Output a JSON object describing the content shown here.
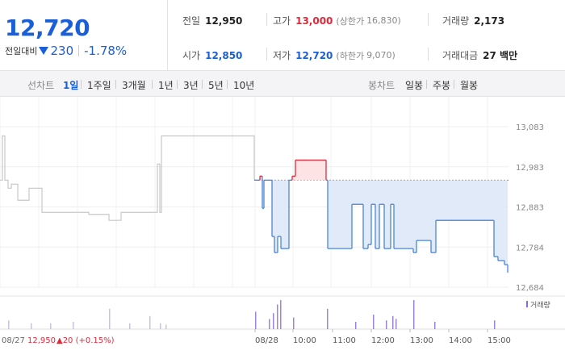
{
  "summary": {
    "price": "12,720",
    "change_label": "전일대비",
    "change_amount": "230",
    "change_pct": "-1.78%",
    "prev_close_label": "전일",
    "prev_close": "12,950",
    "high_label": "고가",
    "high": "13,000",
    "upper_limit_label": "(상한가",
    "upper_limit": "16,830)",
    "volume_label": "거래량",
    "volume": "2,173",
    "open_label": "시가",
    "open": "12,850",
    "low_label": "저가",
    "low": "12,720",
    "lower_limit_label": "(하한가",
    "lower_limit": "9,070)",
    "amount_label": "거래대금",
    "amount": "27 백만"
  },
  "tabs": {
    "line_chart_label": "선차트",
    "periods": [
      "1일",
      "1주일",
      "3개월",
      "1년",
      "3년",
      "5년",
      "10년"
    ],
    "active_period": "1일",
    "candle_label": "봉차트",
    "candles": [
      "일봉",
      "주봉",
      "월봉"
    ]
  },
  "chart_data": {
    "type": "line",
    "y_ticks": [
      "13,083",
      "12,983",
      "12,883",
      "12,784",
      "12,684"
    ],
    "ylim": [
      12684,
      13083
    ],
    "x_ticks": [
      "08/27",
      "08/28",
      "10:00",
      "11:00",
      "12:00",
      "13:00",
      "14:00",
      "15:00"
    ],
    "prev_close": 12950,
    "footer": {
      "date": "08/27",
      "close": "12,950",
      "change": "▲20 (+0.15%)"
    },
    "volume_legend": "거래량",
    "prev_day_series": [
      [
        0,
        12950
      ],
      [
        3,
        12950
      ],
      [
        3,
        13060
      ],
      [
        6,
        13060
      ],
      [
        6,
        12950
      ],
      [
        10,
        12950
      ],
      [
        10,
        12930
      ],
      [
        14,
        12930
      ],
      [
        14,
        12940
      ],
      [
        22,
        12940
      ],
      [
        22,
        12900
      ],
      [
        36,
        12900
      ],
      [
        36,
        12930
      ],
      [
        52,
        12930
      ],
      [
        52,
        12870
      ],
      [
        110,
        12870
      ],
      [
        110,
        12865
      ],
      [
        135,
        12865
      ],
      [
        135,
        12850
      ],
      [
        150,
        12850
      ],
      [
        150,
        12870
      ],
      [
        195,
        12870
      ],
      [
        195,
        12990
      ],
      [
        198,
        12990
      ],
      [
        198,
        12870
      ],
      [
        200,
        12870
      ],
      [
        200,
        13060
      ],
      [
        315,
        13060
      ],
      [
        315,
        12950
      ]
    ],
    "today_series": [
      [
        315,
        12950
      ],
      [
        322,
        12950
      ],
      [
        322,
        12960
      ],
      [
        325,
        12960
      ],
      [
        325,
        12880
      ],
      [
        327,
        12880
      ],
      [
        327,
        12950
      ],
      [
        337,
        12950
      ],
      [
        337,
        12810
      ],
      [
        340,
        12810
      ],
      [
        340,
        12770
      ],
      [
        344,
        12770
      ],
      [
        344,
        12810
      ],
      [
        348,
        12810
      ],
      [
        348,
        12780
      ],
      [
        358,
        12780
      ],
      [
        358,
        12950
      ],
      [
        362,
        12950
      ],
      [
        362,
        12960
      ],
      [
        366,
        12960
      ],
      [
        366,
        13000
      ],
      [
        380,
        13000
      ],
      [
        380,
        13000
      ],
      [
        404,
        13000
      ],
      [
        404,
        12950
      ],
      [
        406,
        12950
      ],
      [
        406,
        12780
      ],
      [
        436,
        12780
      ],
      [
        436,
        12890
      ],
      [
        450,
        12890
      ],
      [
        450,
        12780
      ],
      [
        456,
        12780
      ],
      [
        456,
        12790
      ],
      [
        460,
        12790
      ],
      [
        460,
        12890
      ],
      [
        465,
        12890
      ],
      [
        465,
        12780
      ],
      [
        470,
        12780
      ],
      [
        470,
        12890
      ],
      [
        476,
        12890
      ],
      [
        476,
        12780
      ],
      [
        484,
        12780
      ],
      [
        484,
        12890
      ],
      [
        488,
        12890
      ],
      [
        488,
        12780
      ],
      [
        512,
        12780
      ],
      [
        512,
        12770
      ],
      [
        516,
        12770
      ],
      [
        516,
        12800
      ],
      [
        534,
        12800
      ],
      [
        534,
        12770
      ],
      [
        540,
        12770
      ],
      [
        540,
        12850
      ],
      [
        612,
        12850
      ],
      [
        612,
        12760
      ],
      [
        617,
        12760
      ],
      [
        617,
        12750
      ],
      [
        625,
        12750
      ],
      [
        625,
        12740
      ],
      [
        629,
        12740
      ],
      [
        629,
        12720
      ]
    ],
    "volume_bars": [
      {
        "x": 10,
        "h": 0.3
      },
      {
        "x": 38,
        "h": 0.2
      },
      {
        "x": 62,
        "h": 0.2
      },
      {
        "x": 90,
        "h": 0.25
      },
      {
        "x": 135,
        "h": 0.7
      },
      {
        "x": 160,
        "h": 0.2
      },
      {
        "x": 185,
        "h": 0.45
      },
      {
        "x": 198,
        "h": 0.2
      },
      {
        "x": 205,
        "h": 0.15
      },
      {
        "x": 316,
        "h": 0.6
      },
      {
        "x": 333,
        "h": 0.35
      },
      {
        "x": 338,
        "h": 0.55
      },
      {
        "x": 343,
        "h": 0.85
      },
      {
        "x": 347,
        "h": 1.0
      },
      {
        "x": 363,
        "h": 0.4
      },
      {
        "x": 405,
        "h": 0.7
      },
      {
        "x": 440,
        "h": 0.25
      },
      {
        "x": 462,
        "h": 0.5
      },
      {
        "x": 478,
        "h": 0.3
      },
      {
        "x": 486,
        "h": 0.45
      },
      {
        "x": 490,
        "h": 0.35
      },
      {
        "x": 512,
        "h": 1.0
      },
      {
        "x": 538,
        "h": 0.25
      },
      {
        "x": 612,
        "h": 0.3
      }
    ]
  }
}
